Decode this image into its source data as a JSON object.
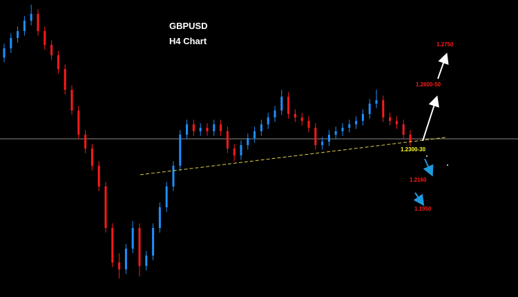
{
  "chart_data": {
    "type": "candlestick",
    "title": "GBPUSD",
    "subtitle": "H4 Chart",
    "up_color": "#1e90ff",
    "down_color": "#ff1a1a",
    "ylim": [
      1.166,
      1.295
    ],
    "reference_line": 1.2347,
    "open": [
      1.27,
      1.274,
      1.2785,
      1.2815,
      1.286,
      1.289,
      1.2815,
      1.2755,
      1.271,
      1.265,
      1.256,
      1.247,
      1.2365,
      1.2305,
      1.223,
      1.214,
      1.196,
      1.181,
      1.178,
      1.187,
      1.196,
      1.1795,
      1.184,
      1.196,
      1.205,
      1.214,
      1.223,
      1.2365,
      1.241,
      1.238,
      1.2395,
      1.238,
      1.241,
      1.238,
      1.2305,
      1.2275,
      1.232,
      1.235,
      1.238,
      1.241,
      1.244,
      1.247,
      1.253,
      1.2455,
      1.244,
      1.2425,
      1.2395,
      1.232,
      1.2335,
      1.2365,
      1.238,
      1.2395,
      1.241,
      1.2425,
      1.2455,
      1.25,
      1.2515,
      1.244,
      1.2425,
      1.241,
      1.2365
    ],
    "high": [
      1.276,
      1.2805,
      1.2835,
      1.288,
      1.293,
      1.291,
      1.2835,
      1.2775,
      1.273,
      1.267,
      1.258,
      1.249,
      1.2385,
      1.2325,
      1.225,
      1.216,
      1.198,
      1.185,
      1.189,
      1.199,
      1.198,
      1.186,
      1.198,
      1.207,
      1.216,
      1.225,
      1.2385,
      1.243,
      1.243,
      1.2415,
      1.2415,
      1.243,
      1.243,
      1.24,
      1.2325,
      1.234,
      1.237,
      1.24,
      1.243,
      1.246,
      1.249,
      1.256,
      1.255,
      1.2475,
      1.246,
      1.2445,
      1.2415,
      1.2355,
      1.2385,
      1.24,
      1.2415,
      1.243,
      1.2445,
      1.2475,
      1.252,
      1.256,
      1.2535,
      1.246,
      1.2445,
      1.243,
      1.2385
    ],
    "low": [
      1.268,
      1.272,
      1.2765,
      1.2795,
      1.284,
      1.2795,
      1.2735,
      1.269,
      1.263,
      1.254,
      1.245,
      1.2345,
      1.2285,
      1.221,
      1.212,
      1.194,
      1.179,
      1.174,
      1.176,
      1.185,
      1.175,
      1.1775,
      1.182,
      1.194,
      1.203,
      1.212,
      1.221,
      1.2345,
      1.236,
      1.236,
      1.236,
      1.236,
      1.236,
      1.2285,
      1.225,
      1.2255,
      1.23,
      1.233,
      1.236,
      1.239,
      1.242,
      1.245,
      1.2435,
      1.242,
      1.2405,
      1.2375,
      1.23,
      1.23,
      1.2315,
      1.2345,
      1.236,
      1.2375,
      1.239,
      1.2405,
      1.2435,
      1.248,
      1.242,
      1.2405,
      1.239,
      1.2345,
      1.2315
    ],
    "close": [
      1.274,
      1.2785,
      1.2815,
      1.286,
      1.289,
      1.2815,
      1.2755,
      1.271,
      1.265,
      1.256,
      1.247,
      1.2365,
      1.2305,
      1.223,
      1.214,
      1.196,
      1.181,
      1.178,
      1.187,
      1.196,
      1.1795,
      1.184,
      1.196,
      1.205,
      1.214,
      1.223,
      1.2365,
      1.241,
      1.238,
      1.2395,
      1.238,
      1.241,
      1.238,
      1.2305,
      1.2275,
      1.232,
      1.235,
      1.238,
      1.241,
      1.244,
      1.247,
      1.253,
      1.2455,
      1.244,
      1.2425,
      1.2395,
      1.232,
      1.2335,
      1.2365,
      1.238,
      1.2395,
      1.241,
      1.2425,
      1.2455,
      1.25,
      1.2515,
      1.244,
      1.2425,
      1.241,
      1.2365,
      1.2335
    ],
    "annotations": [
      "1.2750",
      "1.2600-50",
      "1.2300-30",
      "1.2160",
      "1.1950"
    ]
  }
}
